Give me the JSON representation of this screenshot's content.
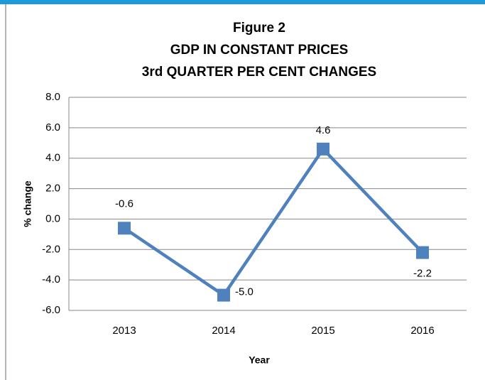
{
  "chart_data": {
    "type": "line",
    "title": [
      "Figure 2",
      "GDP IN CONSTANT PRICES",
      "3rd QUARTER PER CENT CHANGES"
    ],
    "x_label": "Year",
    "y_label": "% change",
    "categories": [
      "2013",
      "2014",
      "2015",
      "2016"
    ],
    "series": [
      {
        "name": "GDP",
        "color": "#4f81bd",
        "values": [
          -0.6,
          -5.0,
          4.6,
          -2.2
        ],
        "value_labels": [
          "-0.6",
          "-5.0",
          "4.6",
          "-2.2"
        ]
      }
    ],
    "ylim": [
      -6,
      8
    ],
    "yticks": [
      {
        "value": -6,
        "label": "-6.0"
      },
      {
        "value": -4,
        "label": "-4.0"
      },
      {
        "value": -2,
        "label": "-2.0"
      },
      {
        "value": 0,
        "label": "0.0"
      },
      {
        "value": 2,
        "label": "2.0"
      },
      {
        "value": 4,
        "label": "4.0"
      },
      {
        "value": 6,
        "label": "6.0"
      },
      {
        "value": 8,
        "label": "8.0"
      }
    ],
    "grid": true
  }
}
